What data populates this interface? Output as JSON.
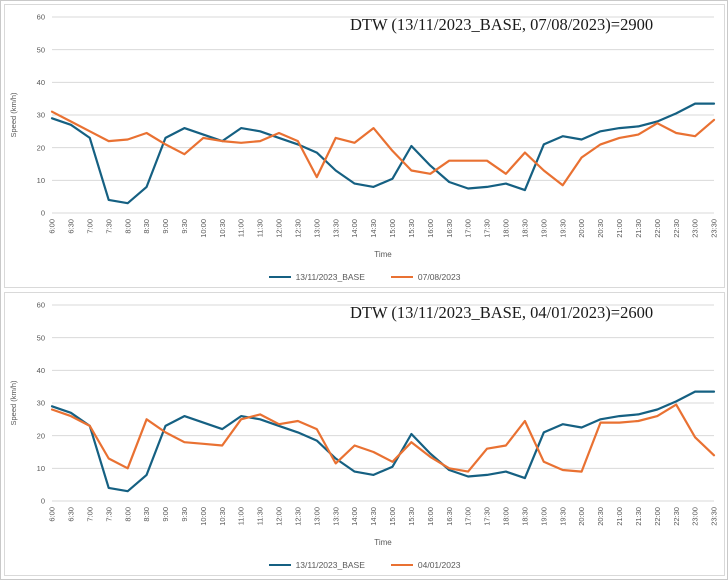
{
  "colors": {
    "base_series": "#156082",
    "compare_series": "#E97132",
    "gridline": "#d9d9d9",
    "axis_text": "#595959",
    "panel_border": "#d9d9d9",
    "title_text": "#1a1a1a"
  },
  "chart_data": [
    {
      "type": "line",
      "title": "DTW (13/11/2023_BASE, 07/08/2023)=2900",
      "dtw_value": 2900,
      "xlabel": "Time",
      "ylabel": "Speed (km/h)",
      "ylim": [
        0,
        60
      ],
      "ytick_step": 10,
      "grid": "on",
      "legend_position": "bottom",
      "categories": [
        "6:00",
        "6:30",
        "7:00",
        "7:30",
        "8:00",
        "8:30",
        "9:00",
        "9:30",
        "10:00",
        "10:30",
        "11:00",
        "11:30",
        "12:00",
        "12:30",
        "13:00",
        "13:30",
        "14:00",
        "14:30",
        "15:00",
        "15:30",
        "16:00",
        "16:30",
        "17:00",
        "17:30",
        "18:00",
        "18:30",
        "19:00",
        "19:30",
        "20:00",
        "20:30",
        "21:00",
        "21:30",
        "22:00",
        "22:30",
        "23:00",
        "23:30"
      ],
      "series": [
        {
          "name": "13/11/2023_BASE",
          "color": "#156082",
          "values": [
            29,
            27,
            23,
            4,
            3,
            8,
            23,
            26,
            24,
            22,
            26,
            25,
            23,
            21,
            18.5,
            13,
            9,
            8,
            10.5,
            20.5,
            14.5,
            9.5,
            7.5,
            8,
            9,
            7,
            21,
            23.5,
            22.5,
            25,
            26,
            26.5,
            28,
            30.5,
            33.5,
            33.5
          ]
        },
        {
          "name": "07/08/2023",
          "color": "#E97132",
          "values": [
            31,
            28,
            25,
            22,
            22.5,
            24.5,
            21,
            18,
            23,
            22,
            21.5,
            22,
            24.5,
            22,
            11,
            23,
            21.5,
            26,
            19,
            13,
            12,
            16,
            16,
            16,
            12,
            18.5,
            13,
            8.5,
            17,
            21,
            23,
            24,
            27.5,
            24.5,
            23.5,
            28.5
          ]
        }
      ]
    },
    {
      "type": "line",
      "title": "DTW (13/11/2023_BASE, 04/01/2023)=2600",
      "dtw_value": 2600,
      "xlabel": "Time",
      "ylabel": "Speed (km/h)",
      "ylim": [
        0,
        60
      ],
      "ytick_step": 10,
      "grid": "on",
      "legend_position": "bottom",
      "categories": [
        "6:00",
        "6:30",
        "7:00",
        "7:30",
        "8:00",
        "8:30",
        "9:00",
        "9:30",
        "10:00",
        "10:30",
        "11:00",
        "11:30",
        "12:00",
        "12:30",
        "13:00",
        "13:30",
        "14:00",
        "14:30",
        "15:00",
        "15:30",
        "16:00",
        "16:30",
        "17:00",
        "17:30",
        "18:00",
        "18:30",
        "19:00",
        "19:30",
        "20:00",
        "20:30",
        "21:00",
        "21:30",
        "22:00",
        "22:30",
        "23:00",
        "23:30"
      ],
      "series": [
        {
          "name": "13/11/2023_BASE",
          "color": "#156082",
          "values": [
            29,
            27,
            23,
            4,
            3,
            8,
            23,
            26,
            24,
            22,
            26,
            25,
            23,
            21,
            18.5,
            13,
            9,
            8,
            10.5,
            20.5,
            14.5,
            9.5,
            7.5,
            8,
            9,
            7,
            21,
            23.5,
            22.5,
            25,
            26,
            26.5,
            28,
            30.5,
            33.5,
            33.5
          ]
        },
        {
          "name": "04/01/2023",
          "color": "#E97132",
          "values": [
            28,
            26,
            23,
            13,
            10,
            25,
            21,
            18,
            17.5,
            17,
            25,
            26.5,
            23.5,
            24.5,
            22,
            11.5,
            17,
            15,
            12,
            18,
            13.5,
            10,
            9,
            16,
            17,
            24.5,
            12,
            9.5,
            9,
            24,
            24,
            24.5,
            26,
            29.5,
            19.5,
            14
          ]
        }
      ]
    }
  ]
}
